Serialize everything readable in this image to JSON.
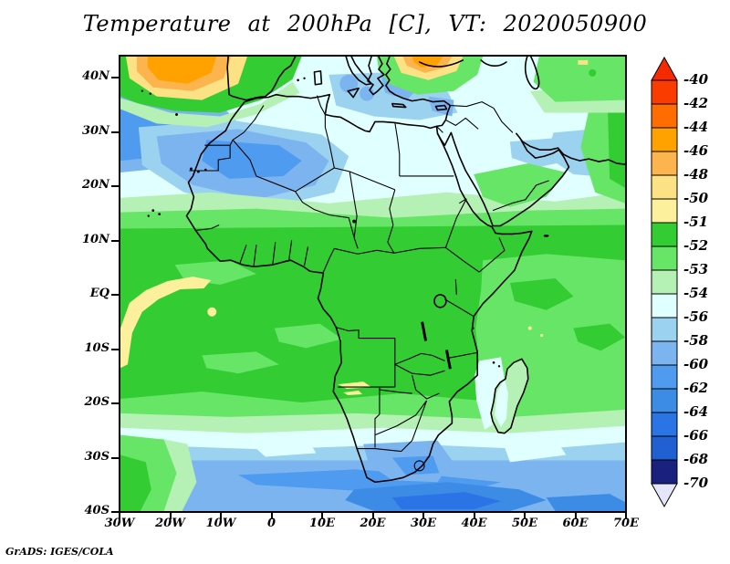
{
  "title": "Temperature at 200hPa [C], VT: 2020050900",
  "credit": "GrADS: IGES/COLA",
  "map_info": {
    "variable": "Temperature",
    "level": "200hPa",
    "units": "C",
    "valid_time": "2020050900"
  },
  "axes": {
    "lat_labels": [
      "40N",
      "30N",
      "20N",
      "10N",
      "EQ",
      "10S",
      "20S",
      "30S",
      "40S"
    ],
    "lon_labels": [
      "30W",
      "20W",
      "10W",
      "0",
      "10E",
      "20E",
      "30E",
      "40E",
      "50E",
      "60E",
      "70E"
    ]
  },
  "colorbar": {
    "labels": [
      "-40",
      "-42",
      "-44",
      "-46",
      "-48",
      "-50",
      "-51",
      "-52",
      "-53",
      "-54",
      "-56",
      "-58",
      "-60",
      "-62",
      "-64",
      "-66",
      "-68",
      "-70"
    ],
    "colors": [
      "#f52a00",
      "#fb3c00",
      "#ff6c00",
      "#ffa200",
      "#fbb44e",
      "#fce285",
      "#fcf09c",
      "#33cc33",
      "#66e566",
      "#b5f0b5",
      "#e0ffff",
      "#9ad2f0",
      "#7cb4f0",
      "#4f9bf0",
      "#3c8ce6",
      "#2a74e6",
      "#2060d2",
      "#19207e",
      "#e6e6fa"
    ]
  }
}
